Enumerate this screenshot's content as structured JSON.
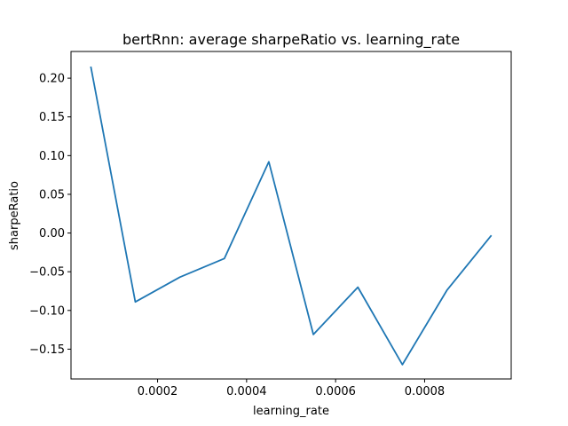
{
  "chart_data": {
    "type": "line",
    "title": "bertRnn: average sharpeRatio vs. learning_rate",
    "xlabel": "learning_rate",
    "ylabel": "sharpeRatio",
    "xlim": [
      5.5e-06,
      0.0009945
    ],
    "ylim": [
      -0.1885,
      0.2345
    ],
    "xticks": [
      {
        "value": 0.0002,
        "label": "0.0002"
      },
      {
        "value": 0.0004,
        "label": "0.0004"
      },
      {
        "value": 0.0006,
        "label": "0.0006"
      },
      {
        "value": 0.0008,
        "label": "0.0008"
      }
    ],
    "yticks": [
      {
        "value": 0.2,
        "label": "0.20"
      },
      {
        "value": 0.15,
        "label": "0.15"
      },
      {
        "value": 0.1,
        "label": "0.10"
      },
      {
        "value": 0.05,
        "label": "0.05"
      },
      {
        "value": 0.0,
        "label": "0.00"
      },
      {
        "value": -0.05,
        "label": "−0.05"
      },
      {
        "value": -0.1,
        "label": "−0.10"
      },
      {
        "value": -0.15,
        "label": "−0.15"
      }
    ],
    "grid": false,
    "series": [
      {
        "color": "#1f77b4",
        "x": [
          5e-05,
          0.00015,
          0.00025,
          0.00035,
          0.00045,
          0.00055,
          0.00065,
          0.00075,
          0.00085,
          0.00095
        ],
        "y": [
          0.215,
          -0.089,
          -0.057,
          -0.033,
          0.092,
          -0.131,
          -0.07,
          -0.17,
          -0.074,
          -0.003
        ]
      }
    ]
  }
}
